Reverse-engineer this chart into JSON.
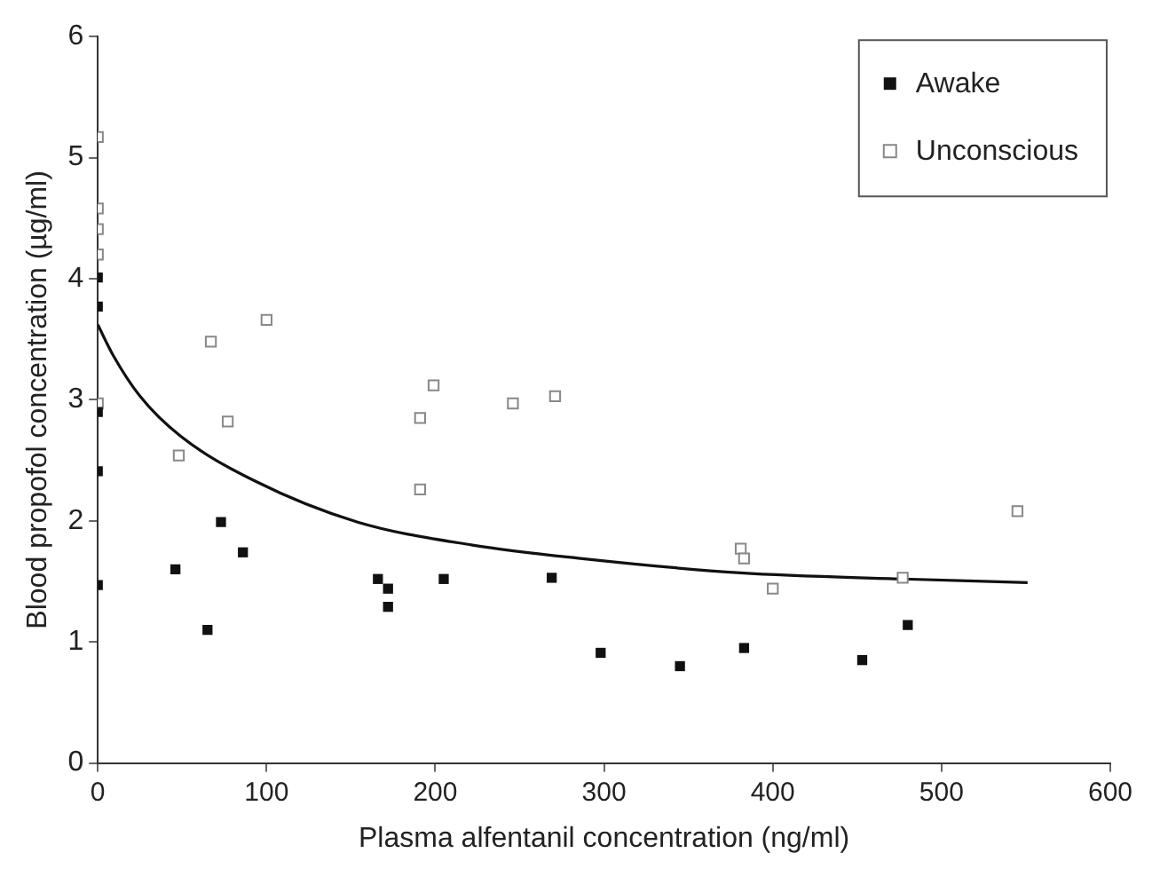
{
  "chart_data": {
    "type": "scatter",
    "xlabel": "Plasma alfentanil concentration (ng/ml)",
    "ylabel": "Blood propofol concentration (µg/ml)",
    "xlim": [
      0,
      600
    ],
    "xticks": [
      0,
      100,
      200,
      300,
      400,
      500,
      600
    ],
    "ylim": [
      0,
      6
    ],
    "yticks": [
      0,
      1,
      2,
      3,
      4,
      5,
      6
    ],
    "grid": false,
    "legend": "top right",
    "marker": "square",
    "series": [
      {
        "name": "Awake",
        "color": "#111111",
        "x": [
          0,
          0,
          0,
          0,
          0,
          46,
          65,
          73,
          86,
          166,
          172,
          172,
          205,
          269,
          298,
          345,
          383,
          453,
          480
        ],
        "values": [
          4.01,
          3.77,
          2.9,
          2.41,
          1.47,
          1.6,
          1.1,
          1.99,
          1.74,
          1.52,
          1.44,
          1.29,
          1.52,
          1.53,
          0.91,
          0.8,
          0.95,
          0.85,
          1.14
        ]
      },
      {
        "name": "Unconscious",
        "color": "#888888",
        "marker": "square",
        "x": [
          0,
          0,
          0,
          0,
          0,
          48,
          67,
          77,
          100,
          191,
          199,
          191,
          246,
          271,
          381,
          383,
          400,
          477,
          545
        ],
        "values": [
          5.17,
          4.58,
          4.41,
          4.2,
          2.97,
          2.54,
          3.48,
          2.82,
          3.66,
          2.85,
          3.12,
          2.26,
          2.97,
          3.03,
          1.77,
          1.69,
          1.44,
          1.53,
          2.08
        ]
      },
      {
        "type": "line",
        "color": "#111111",
        "marker": "none",
        "x": [
          0,
          9,
          25,
          49,
          93,
          154,
          222,
          286,
          381,
          477,
          551
        ],
        "values": [
          3.62,
          3.37,
          3.03,
          2.7,
          2.33,
          1.99,
          1.8,
          1.69,
          1.57,
          1.52,
          1.49
        ]
      }
    ]
  }
}
